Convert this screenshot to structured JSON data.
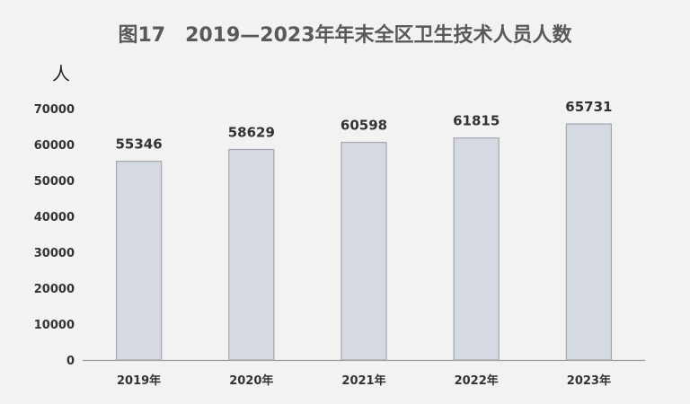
{
  "chart_data": {
    "type": "bar",
    "title": "图17　2019—2023年年末全区卫生技术人员人数",
    "ylabel": "人",
    "xlabel": "",
    "categories": [
      "2019年",
      "2020年",
      "2021年",
      "2022年",
      "2023年"
    ],
    "values": [
      55346,
      58629,
      60598,
      61815,
      65731
    ],
    "ylim": [
      0,
      70000
    ],
    "yticks": [
      0,
      10000,
      20000,
      30000,
      40000,
      50000,
      60000,
      70000
    ],
    "grid": false,
    "legend": "none",
    "colors": {
      "bar_fill": "#d5d9e1",
      "bar_stroke": "#a3a7ae",
      "axis": "#9a9a9a",
      "background": "#f2f2f2",
      "title": "#595959"
    }
  }
}
